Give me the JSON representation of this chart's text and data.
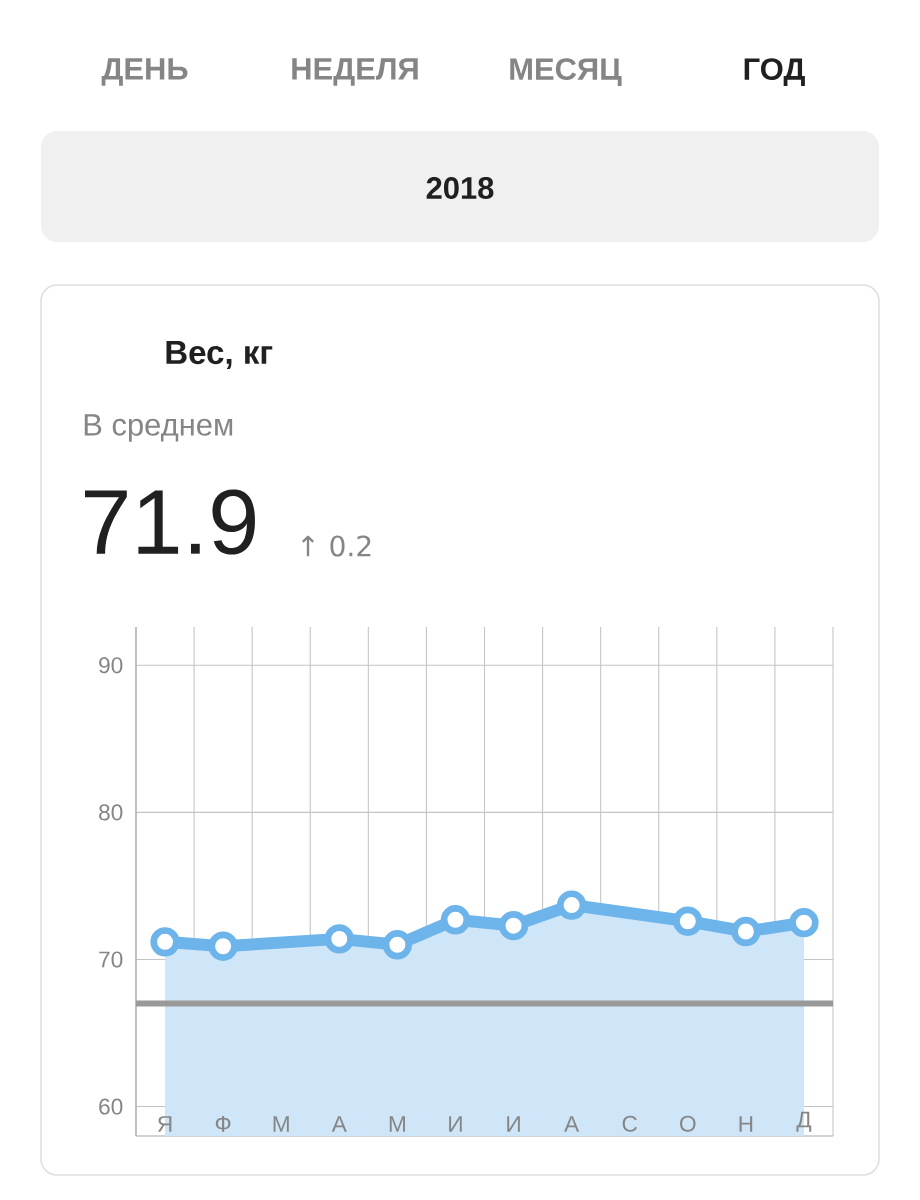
{
  "chart_data": {
    "type": "area",
    "title": "Вес, кг",
    "subtitle": "В среднем",
    "annotations": [
      "ДЕНЬ",
      "НЕДЕЛЯ",
      "МЕСЯЦ",
      "ГОД",
      "2018",
      "71.9",
      "↑ 0.2"
    ],
    "categories": [
      "Я",
      "Ф",
      "М",
      "А",
      "М",
      "И",
      "И",
      "А",
      "С",
      "О",
      "Н",
      "Д"
    ],
    "values": [
      71.2,
      70.9,
      null,
      71.4,
      71.0,
      72.7,
      72.3,
      73.7,
      null,
      72.6,
      71.9,
      72.5
    ],
    "color": "#6cb4ea",
    "marker": "circle",
    "ylim": [
      58,
      92.6
    ],
    "yticks": [
      60,
      70,
      80,
      90
    ],
    "grid": true,
    "ref_lines": [
      {
        "axis": "y",
        "value": 67.0,
        "color": "#999999"
      }
    ]
  }
}
